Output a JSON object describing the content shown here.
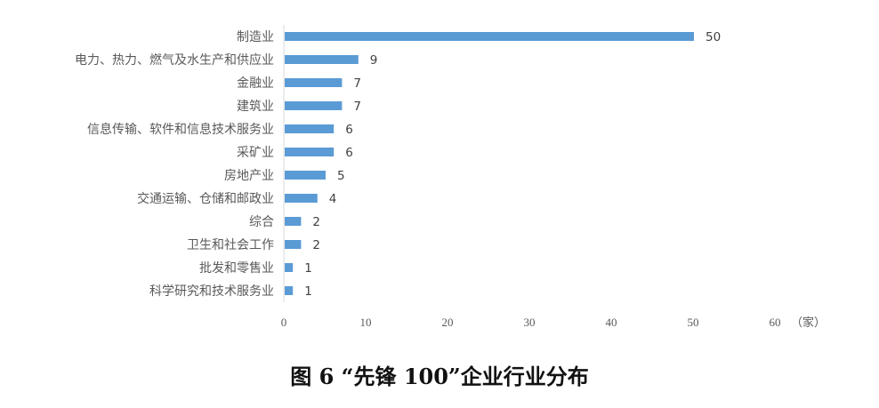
{
  "chart_data": {
    "type": "bar",
    "orientation": "horizontal",
    "title": "图 6 “先锋 100”企业行业分布",
    "unit_label": "（家）",
    "categories": [
      "制造业",
      "电力、热力、燃气及水生产和供应业",
      "金融业",
      "建筑业",
      "信息传输、软件和信息技术服务业",
      "采矿业",
      "房地产业",
      "交通运输、仓储和邮政业",
      "综合",
      "卫生和社会工作",
      "批发和零售业",
      "科学研究和技术服务业"
    ],
    "values": [
      50,
      9,
      7,
      7,
      6,
      6,
      5,
      4,
      2,
      2,
      1,
      1
    ],
    "xlim": [
      0,
      60
    ],
    "xticks": [
      0,
      10,
      20,
      30,
      40,
      50,
      60
    ],
    "grid": false,
    "bar_color": "#5b9bd5"
  }
}
